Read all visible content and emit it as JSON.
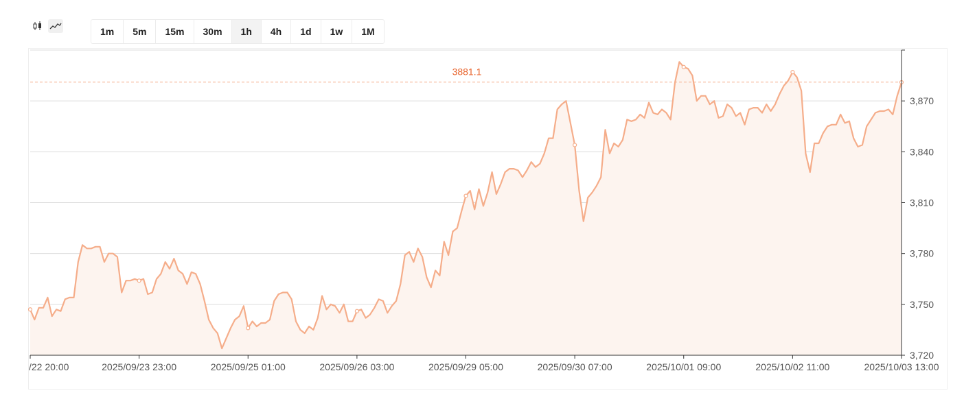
{
  "toolbar": {
    "chart_types": [
      {
        "icon": "candlestick-icon",
        "active": false
      },
      {
        "icon": "line-chart-icon",
        "active": true
      }
    ],
    "timeframes": [
      "1m",
      "5m",
      "15m",
      "30m",
      "1h",
      "4h",
      "1d",
      "1w",
      "1M"
    ],
    "active_timeframe": "1h"
  },
  "colors": {
    "line": "#f5ad8a",
    "area": "#fdf4ef",
    "reference_line": "#f5ad8a",
    "reference_label": "#e8622a",
    "grid": "#dcdcdc"
  },
  "chart_data": {
    "type": "area",
    "ylim": [
      3720,
      3900
    ],
    "yticks": [
      3720,
      3750,
      3780,
      3810,
      3840,
      3870
    ],
    "ytick_labels": [
      "3,720",
      "3,750",
      "3,780",
      "3,810",
      "3,840",
      "3,870"
    ],
    "xticks": [
      {
        "t": 0,
        "label": "/22 20:00"
      },
      {
        "t": 27,
        "label": "2025/09/23 23:00"
      },
      {
        "t": 54,
        "label": "2025/09/25 01:00"
      },
      {
        "t": 81,
        "label": "2025/09/26 03:00"
      },
      {
        "t": 108,
        "label": "2025/09/29 05:00"
      },
      {
        "t": 135,
        "label": "2025/09/30 07:00"
      },
      {
        "t": 162,
        "label": "2025/10/01 09:00"
      },
      {
        "t": 189,
        "label": "2025/10/02 11:00"
      },
      {
        "t": 216,
        "label": "2025/10/03 13:00"
      }
    ],
    "t_range": [
      0,
      216
    ],
    "reference": {
      "value": 3881.1,
      "label": "3881.1"
    },
    "values": [
      3747,
      3741,
      3748,
      3748,
      3754,
      3743,
      3747,
      3746,
      3753,
      3754,
      3754,
      3775,
      3785,
      3783,
      3783,
      3784,
      3784,
      3775,
      3780,
      3780,
      3778,
      3757,
      3764,
      3764,
      3765,
      3764,
      3765,
      3756,
      3757,
      3765,
      3768,
      3775,
      3771,
      3777,
      3770,
      3768,
      3762,
      3769,
      3768,
      3762,
      3752,
      3741,
      3736,
      3733,
      3724,
      3730,
      3736,
      3741,
      3743,
      3749,
      3736,
      3740,
      3737,
      3739,
      3739,
      3741,
      3752,
      3756,
      3757,
      3757,
      3753,
      3740,
      3735,
      3733,
      3737,
      3735,
      3742,
      3755,
      3747,
      3750,
      3749,
      3745,
      3750,
      3740,
      3740,
      3746,
      3747,
      3742,
      3744,
      3748,
      3753,
      3752,
      3745,
      3749,
      3752,
      3762,
      3779,
      3781,
      3775,
      3783,
      3778,
      3766,
      3760,
      3770,
      3767,
      3787,
      3779,
      3793,
      3795,
      3805,
      3814,
      3817,
      3806,
      3818,
      3808,
      3816,
      3828,
      3815,
      3821,
      3828,
      3830,
      3830,
      3829,
      3825,
      3829,
      3834,
      3831,
      3833,
      3839,
      3848,
      3848,
      3865,
      3868,
      3870,
      3857,
      3844,
      3817,
      3799,
      3813,
      3816,
      3820,
      3825,
      3853,
      3839,
      3845,
      3843,
      3847,
      3859,
      3858,
      3859,
      3862,
      3860,
      3869,
      3863,
      3862,
      3865,
      3863,
      3859,
      3881,
      3893,
      3890,
      3889,
      3885,
      3870,
      3873,
      3873,
      3868,
      3870,
      3860,
      3861,
      3868,
      3866,
      3861,
      3863,
      3856,
      3865,
      3866,
      3866,
      3863,
      3868,
      3864,
      3868,
      3874,
      3879,
      3882,
      3887,
      3884,
      3876,
      3839,
      3828,
      3845,
      3845,
      3851,
      3855,
      3856,
      3856,
      3862,
      3857,
      3858,
      3848,
      3843,
      3844,
      3855,
      3859,
      3863,
      3864,
      3864,
      3865,
      3862,
      3873,
      3881
    ]
  }
}
